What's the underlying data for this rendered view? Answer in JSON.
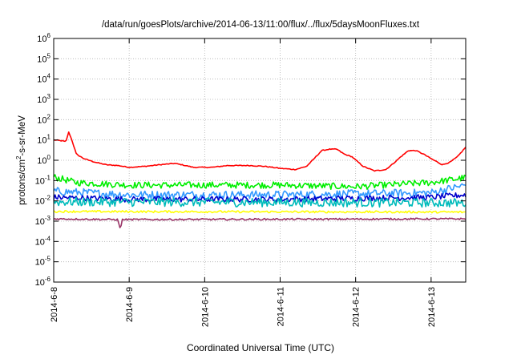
{
  "chart_data": {
    "type": "line",
    "title": "/data/run/goesPlots/archive/2014-06-13/11:00/flux/../flux/5daysMoonFluxes.txt",
    "xlabel": "Coordinated Universal Time (UTC)",
    "ylabel": {
      "prefix": "protons/cm",
      "sup": "2",
      "suffix": "-s-sr-MeV"
    },
    "yscale": "log",
    "ylim_exponents": [
      -6,
      6
    ],
    "y_ticks": [
      {
        "base": "10",
        "exp": "6",
        "value": 1000000
      },
      {
        "base": "10",
        "exp": "5",
        "value": 100000
      },
      {
        "base": "10",
        "exp": "4",
        "value": 10000
      },
      {
        "base": "10",
        "exp": "3",
        "value": 1000
      },
      {
        "base": "10",
        "exp": "2",
        "value": 100
      },
      {
        "base": "10",
        "exp": "1",
        "value": 10
      },
      {
        "base": "10",
        "exp": "0",
        "value": 1
      },
      {
        "base": "10",
        "exp": "-1",
        "value": 0.1
      },
      {
        "base": "10",
        "exp": "-2",
        "value": 0.01
      },
      {
        "base": "10",
        "exp": "-3",
        "value": 0.001
      },
      {
        "base": "10",
        "exp": "-4",
        "value": 0.0001
      },
      {
        "base": "10",
        "exp": "-5",
        "value": 1e-05
      },
      {
        "base": "10",
        "exp": "-6",
        "value": 1e-06
      }
    ],
    "xlim": [
      "2014-06-08 00:00",
      "2014-06-13 11:00"
    ],
    "x_ticks": [
      "2014-6-8",
      "2014-6-9",
      "2014-6-10",
      "2014-6-11",
      "2014-6-12",
      "2014-6-13"
    ],
    "grid": true,
    "series": [
      {
        "color": "#ff0000",
        "noise": 0.02,
        "baseline": [
          [
            0,
            10
          ],
          [
            0.12,
            9
          ],
          [
            0.16,
            8
          ],
          [
            0.2,
            25
          ],
          [
            0.24,
            10
          ],
          [
            0.3,
            2
          ],
          [
            0.4,
            1.2
          ],
          [
            0.55,
            0.8
          ],
          [
            0.7,
            0.6
          ],
          [
            0.85,
            0.55
          ],
          [
            1.0,
            0.45
          ],
          [
            1.2,
            0.5
          ],
          [
            1.4,
            0.6
          ],
          [
            1.6,
            0.7
          ],
          [
            1.7,
            0.6
          ],
          [
            1.85,
            0.45
          ],
          [
            2.1,
            0.45
          ],
          [
            2.3,
            0.55
          ],
          [
            2.6,
            0.55
          ],
          [
            2.8,
            0.5
          ],
          [
            3.0,
            0.4
          ],
          [
            3.2,
            0.35
          ],
          [
            3.35,
            0.5
          ],
          [
            3.45,
            1.2
          ],
          [
            3.55,
            3
          ],
          [
            3.65,
            3.5
          ],
          [
            3.75,
            3.5
          ],
          [
            3.85,
            2
          ],
          [
            3.95,
            1.5
          ],
          [
            4.1,
            0.5
          ],
          [
            4.25,
            0.3
          ],
          [
            4.4,
            0.35
          ],
          [
            4.5,
            0.7
          ],
          [
            4.6,
            1.5
          ],
          [
            4.7,
            3
          ],
          [
            4.8,
            3
          ],
          [
            4.9,
            2
          ],
          [
            5.0,
            1.2
          ],
          [
            5.15,
            0.6
          ],
          [
            5.25,
            0.8
          ],
          [
            5.35,
            1.5
          ],
          [
            5.46,
            4.5
          ]
        ]
      },
      {
        "color": "#00ee00",
        "noise": 0.16,
        "baseline": [
          [
            0,
            0.15
          ],
          [
            0.3,
            0.08
          ],
          [
            1.0,
            0.06
          ],
          [
            3.0,
            0.06
          ],
          [
            4.0,
            0.05
          ],
          [
            5.0,
            0.08
          ],
          [
            5.46,
            0.14
          ]
        ]
      },
      {
        "color": "#3399ff",
        "noise": 0.2,
        "baseline": [
          [
            0,
            0.03
          ],
          [
            1.0,
            0.02
          ],
          [
            3.0,
            0.02
          ],
          [
            5.0,
            0.025
          ],
          [
            5.46,
            0.06
          ]
        ]
      },
      {
        "color": "#0000cc",
        "noise": 0.14,
        "baseline": [
          [
            0,
            0.015
          ],
          [
            1.0,
            0.012
          ],
          [
            3.0,
            0.012
          ],
          [
            5.0,
            0.015
          ],
          [
            5.46,
            0.02
          ]
        ]
      },
      {
        "color": "#00bbbb",
        "noise": 0.22,
        "baseline": [
          [
            0,
            0.009
          ],
          [
            5.46,
            0.008
          ]
        ]
      },
      {
        "color": "#ffff00",
        "noise": 0.05,
        "baseline": [
          [
            0,
            0.003
          ],
          [
            5.46,
            0.0028
          ]
        ]
      },
      {
        "color": "#993366",
        "noise": 0.04,
        "baseline": [
          [
            0,
            0.0013
          ],
          [
            0.85,
            0.0012
          ],
          [
            0.88,
            0.0004
          ],
          [
            0.91,
            0.0012
          ],
          [
            5.46,
            0.0013
          ]
        ]
      }
    ]
  }
}
